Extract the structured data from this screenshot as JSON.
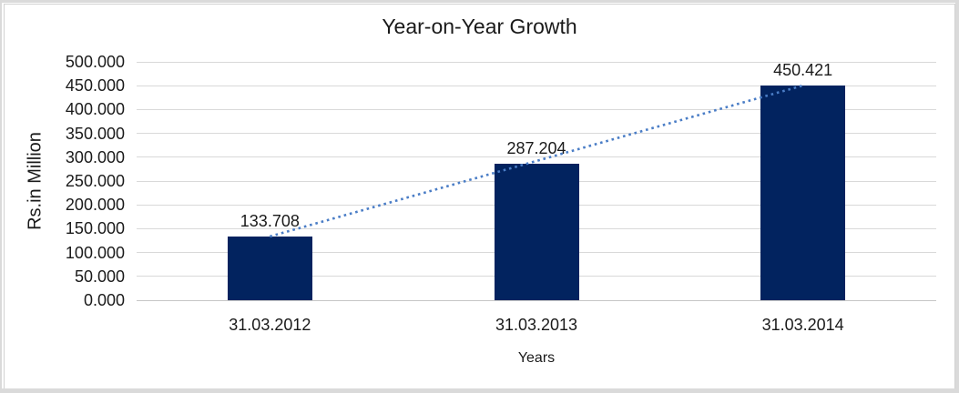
{
  "frame": {
    "outer_border_color": "#dadada",
    "inner_border_color": "#d2d2d2",
    "background": "#ffffff"
  },
  "chart_data": {
    "type": "bar",
    "title": "Year-on-Year Growth",
    "xlabel": "Years",
    "ylabel": "Rs.in Million",
    "categories": [
      "31.03.2012",
      "31.03.2013",
      "31.03.2014"
    ],
    "values": [
      133.708,
      287.204,
      450.421
    ],
    "data_labels": [
      "133.708",
      "287.204",
      "450.421"
    ],
    "ylim": [
      0,
      500
    ],
    "ytick_step": 50,
    "ytick_labels": [
      "0.000",
      "50.000",
      "100.000",
      "150.000",
      "200.000",
      "250.000",
      "300.000",
      "350.000",
      "400.000",
      "450.000",
      "500.000"
    ],
    "grid": true,
    "legend": "none",
    "colors": {
      "bar": "#02235f",
      "gridline": "#d9d9d9",
      "axis_line": "#c6c6c6",
      "trendline": "#4a7dc6",
      "text": "#1a1a1a"
    },
    "trendline": {
      "type": "linear",
      "style": "dotted",
      "from_category_index": 0,
      "to_category_index": 2
    }
  }
}
